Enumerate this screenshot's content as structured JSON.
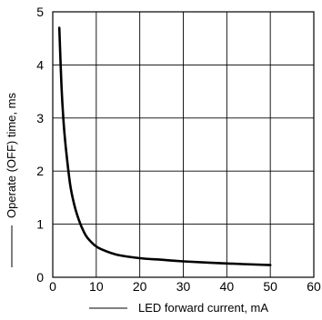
{
  "chart_data": {
    "type": "line",
    "xlabel": "LED forward current, mA",
    "ylabel": "Operate (OFF) time, ms",
    "xlim": [
      0,
      60
    ],
    "ylim": [
      0,
      5
    ],
    "x_ticks": [
      0,
      10,
      20,
      30,
      40,
      50,
      60
    ],
    "y_ticks": [
      0,
      1,
      2,
      3,
      4,
      5
    ],
    "grid": true,
    "series": [
      {
        "color": "#000000",
        "x": [
          1.5,
          2,
          2.5,
          3,
          4,
          5,
          6,
          7,
          8,
          10,
          12,
          15,
          20,
          25,
          30,
          40,
          50
        ],
        "y": [
          4.7,
          3.6,
          2.9,
          2.45,
          1.75,
          1.35,
          1.08,
          0.88,
          0.74,
          0.58,
          0.5,
          0.42,
          0.36,
          0.33,
          0.3,
          0.26,
          0.23
        ]
      }
    ]
  }
}
